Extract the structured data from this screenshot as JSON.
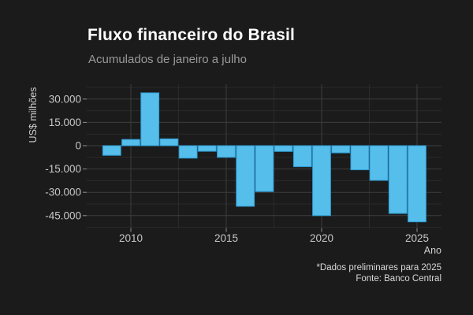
{
  "header": {
    "title": "Fluxo financeiro do Brasil",
    "subtitle": "Acumulados de janeiro a julho"
  },
  "footer": {
    "note": "*Dados preliminares para 2025",
    "source": "Fonte: Banco Central"
  },
  "chart_data": {
    "type": "bar",
    "title": "Fluxo financeiro do Brasil",
    "subtitle": "Acumulados de janeiro a julho",
    "xlabel": "Ano",
    "ylabel": "US$ milhões",
    "unit": "US$ milhões",
    "categories": [
      2009,
      2010,
      2011,
      2012,
      2013,
      2014,
      2015,
      2016,
      2017,
      2018,
      2019,
      2020,
      2021,
      2022,
      2023,
      2024,
      2025
    ],
    "values": [
      -6200,
      4000,
      34000,
      4400,
      -8000,
      -3600,
      -7500,
      -39000,
      -29500,
      -3700,
      -13500,
      -45000,
      -4600,
      -15500,
      -22300,
      -43600,
      -49000
    ],
    "y_major_ticks": [
      {
        "value": 30000,
        "label": "30.000"
      },
      {
        "value": 15000,
        "label": "15.000"
      },
      {
        "value": 0,
        "label": "0"
      },
      {
        "value": -15000,
        "label": "-15.000"
      },
      {
        "value": -30000,
        "label": "-30.000"
      },
      {
        "value": -45000,
        "label": "-45.000"
      }
    ],
    "y_minor_ticks": [
      37500,
      22500,
      7500,
      -7500,
      -22500,
      -37500,
      -52500
    ],
    "x_major_ticks": [
      2010,
      2015,
      2020,
      2025
    ],
    "x_minor_ticks": [
      2012.5,
      2017.5,
      2022.5
    ],
    "ylim": [
      -53000,
      38000
    ],
    "xlim": [
      2007.7,
      2026.3
    ],
    "grid": "major+minor",
    "legend": "none",
    "colors": {
      "background": "#1b1b1b",
      "bar_fill": "#55beeb",
      "bar_edge": "#2f9cd3",
      "grid_major": "#3d3d3d",
      "grid_minor": "#2a2a2a",
      "tick_mark": "#8f8f8f",
      "tick_label": "#c6c6c6",
      "axis_title": "#cfcfcf",
      "title": "#ffffff",
      "subtitle": "#9a9a9a",
      "footer": "#d9d9d9"
    }
  }
}
